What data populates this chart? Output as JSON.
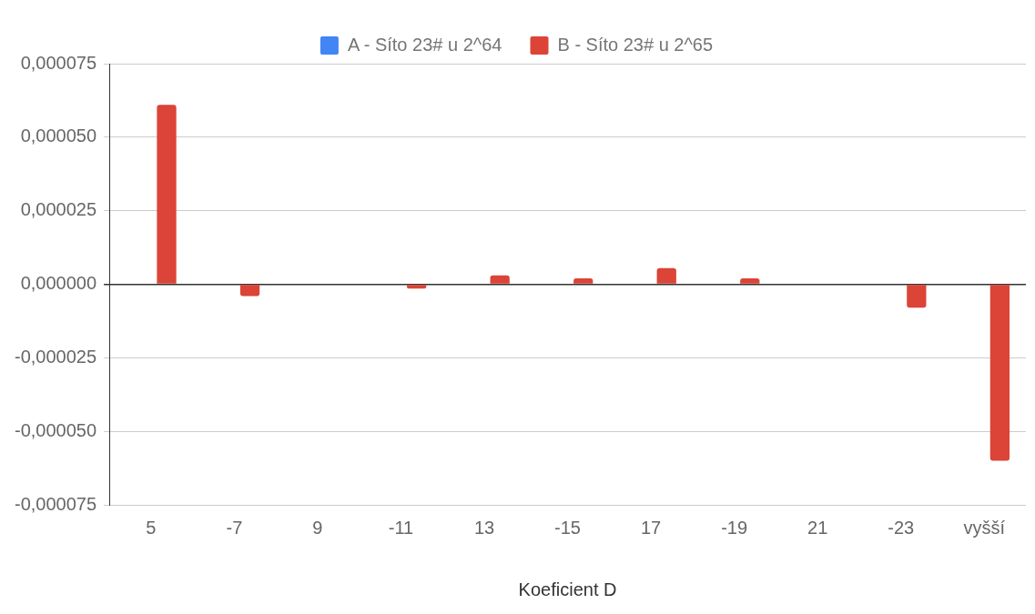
{
  "chart_data": {
    "type": "bar",
    "xlabel": "Koeficient D",
    "categories": [
      "5",
      "-7",
      "9",
      "-11",
      "13",
      "-15",
      "17",
      "-19",
      "21",
      "-23",
      "vyšší"
    ],
    "series": [
      {
        "name": "A - Síto 23# u 2^64",
        "color": "#4285f4",
        "values": [
          0,
          0,
          0,
          0,
          0,
          0,
          0,
          0,
          0,
          0,
          0
        ]
      },
      {
        "name": "B - Síto 23# u 2^65",
        "color": "#db4437",
        "values": [
          6.1e-05,
          -4e-06,
          0,
          -1.5e-06,
          3e-06,
          2e-06,
          5.5e-06,
          2e-06,
          0,
          -8e-06,
          -6e-05
        ]
      }
    ],
    "ylim": [
      -7.5e-05,
      7.5e-05
    ],
    "yticks": [
      {
        "value": -7.5e-05,
        "label": "-0,000075"
      },
      {
        "value": -5e-05,
        "label": "-0,000050"
      },
      {
        "value": -2.5e-05,
        "label": "-0,000025"
      },
      {
        "value": 0,
        "label": "0,000000"
      },
      {
        "value": 2.5e-05,
        "label": "0,000025"
      },
      {
        "value": 5e-05,
        "label": "0,000050"
      },
      {
        "value": 7.5e-05,
        "label": "0,000075"
      }
    ],
    "grid": "y",
    "legend": "top"
  }
}
